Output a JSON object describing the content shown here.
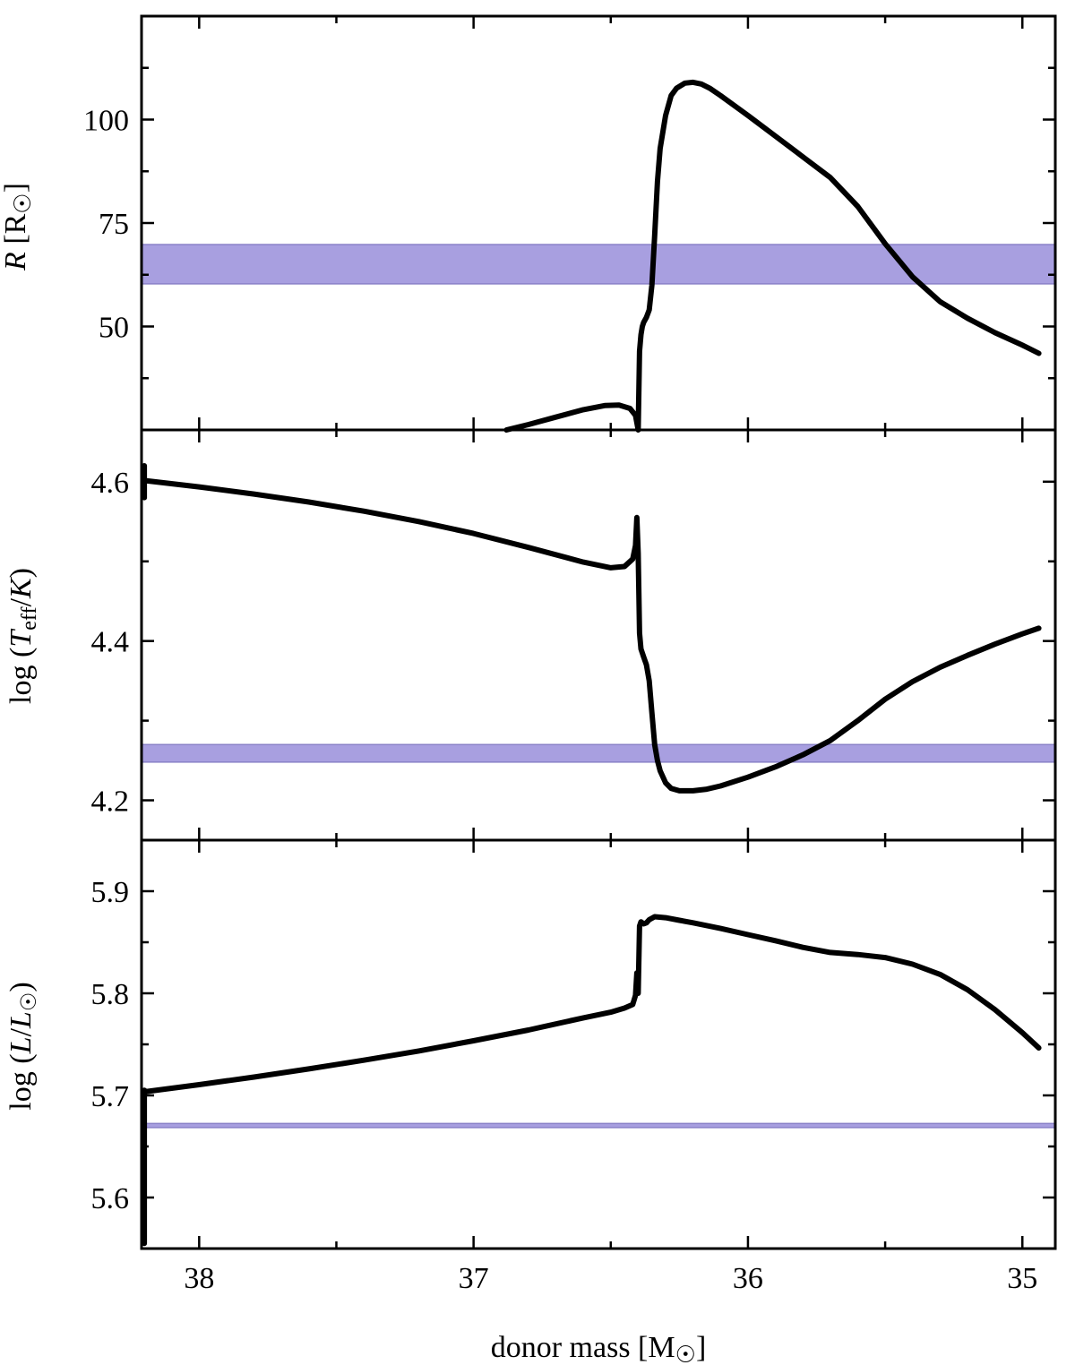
{
  "chart_data": [
    {
      "type": "line",
      "panel": "top",
      "ylabel_parts": [
        "R",
        " [R",
        "☉",
        "]"
      ],
      "xlim": [
        38.21,
        34.88
      ],
      "ylim": [
        25,
        125
      ],
      "yticks": [
        50,
        75,
        100
      ],
      "ytick_labels": [
        "50",
        "75",
        "100"
      ],
      "yminor": [
        25,
        37.5,
        62.5,
        87.5,
        112.5
      ],
      "band": {
        "y0": 60.3,
        "y1": 69.8,
        "color": "#a89fe0"
      },
      "series": [
        {
          "x": [
            36.88,
            36.8,
            36.7,
            36.6,
            36.52,
            36.47,
            36.43,
            36.41,
            36.4,
            36.395,
            36.39,
            36.385,
            36.38,
            36.37,
            36.36,
            36.35,
            36.34,
            36.33,
            36.32,
            36.3,
            36.28,
            36.26,
            36.23,
            36.2,
            36.17,
            36.14,
            36.1,
            36.0,
            35.9,
            35.8,
            35.7,
            35.6,
            35.5,
            35.4,
            35.3,
            35.2,
            35.1,
            35.0,
            34.94
          ],
          "y": [
            25,
            26.3,
            28.1,
            29.9,
            30.9,
            31.0,
            30.2,
            28.5,
            25.0,
            44.0,
            48.0,
            50.0,
            51.0,
            52.2,
            54.0,
            60.0,
            72.0,
            85.0,
            93.0,
            101.0,
            105.8,
            107.6,
            108.8,
            109.0,
            108.6,
            107.6,
            105.8,
            101.0,
            96.0,
            91.0,
            86.0,
            79.0,
            70.0,
            62.0,
            56.0,
            52.0,
            48.5,
            45.5,
            43.5
          ]
        }
      ]
    },
    {
      "type": "line",
      "panel": "middle",
      "ylabel_parts": [
        "log (",
        "T",
        "eff",
        "/",
        "K",
        ")"
      ],
      "xlim": [
        38.21,
        34.88
      ],
      "ylim": [
        4.15,
        4.665
      ],
      "yticks": [
        4.2,
        4.4,
        4.6
      ],
      "ytick_labels": [
        "4.2",
        "4.4",
        "4.6"
      ],
      "yminor": [
        4.3,
        4.5
      ],
      "band": {
        "y0": 4.248,
        "y1": 4.27,
        "color": "#a89fe0"
      },
      "series": [
        {
          "x": [
            38.2,
            38.0,
            37.8,
            37.6,
            37.4,
            37.2,
            37.0,
            36.8,
            36.6,
            36.5,
            36.45,
            36.42,
            36.41,
            36.405,
            36.4,
            36.395,
            36.39,
            36.38,
            36.37,
            36.36,
            36.35,
            36.34,
            36.33,
            36.32,
            36.3,
            36.28,
            36.25,
            36.2,
            36.15,
            36.1,
            36.0,
            35.9,
            35.8,
            35.7,
            35.6,
            35.5,
            35.4,
            35.3,
            35.2,
            35.1,
            35.0,
            34.94
          ],
          "y": [
            4.6015,
            4.5935,
            4.5845,
            4.5745,
            4.563,
            4.55,
            4.535,
            4.5175,
            4.499,
            4.492,
            4.4935,
            4.503,
            4.52,
            4.555,
            4.51,
            4.41,
            4.39,
            4.38,
            4.37,
            4.35,
            4.31,
            4.27,
            4.25,
            4.237,
            4.222,
            4.215,
            4.212,
            4.212,
            4.214,
            4.218,
            4.229,
            4.242,
            4.257,
            4.275,
            4.3,
            4.327,
            4.349,
            4.367,
            4.382,
            4.396,
            4.409,
            4.416
          ]
        },
        {
          "x": [
            38.2,
            38.2
          ],
          "y": [
            4.58,
            4.62
          ]
        }
      ]
    },
    {
      "type": "line",
      "panel": "bottom",
      "ylabel_parts": [
        "log (",
        "L",
        "/",
        "L",
        "☉",
        ")"
      ],
      "xlabel_parts": [
        "donor mass [M",
        "☉",
        "]"
      ],
      "xlim": [
        38.21,
        34.88
      ],
      "ylim": [
        5.55,
        5.95
      ],
      "yticks": [
        5.6,
        5.7,
        5.8,
        5.9
      ],
      "ytick_labels": [
        "5.6",
        "5.7",
        "5.8",
        "5.9"
      ],
      "yminor": [
        5.65,
        5.75,
        5.85
      ],
      "xticks": [
        38,
        37,
        36,
        35
      ],
      "xtick_labels": [
        "38",
        "37",
        "36",
        "35"
      ],
      "xminor": [
        37.5,
        36.5,
        35.5
      ],
      "band": {
        "y0": 5.6685,
        "y1": 5.6725,
        "color": "#a89fe0"
      },
      "series": [
        {
          "x": [
            38.2,
            38.0,
            37.8,
            37.6,
            37.4,
            37.2,
            37.0,
            36.8,
            36.6,
            36.5,
            36.45,
            36.42,
            36.41,
            36.405,
            36.4,
            36.395,
            36.39,
            36.385,
            36.38,
            36.37,
            36.36,
            36.34,
            36.3,
            36.25,
            36.2,
            36.1,
            36.0,
            35.9,
            35.8,
            35.7,
            35.6,
            35.5,
            35.4,
            35.3,
            35.2,
            35.1,
            35.0,
            34.94
          ],
          "y": [
            5.7035,
            5.7105,
            5.718,
            5.726,
            5.7345,
            5.7435,
            5.7535,
            5.764,
            5.776,
            5.7815,
            5.7855,
            5.789,
            5.798,
            5.82,
            5.8,
            5.866,
            5.87,
            5.869,
            5.868,
            5.869,
            5.872,
            5.875,
            5.874,
            5.8715,
            5.869,
            5.8635,
            5.8575,
            5.8515,
            5.845,
            5.84,
            5.838,
            5.835,
            5.8285,
            5.8185,
            5.8035,
            5.784,
            5.7615,
            5.7465
          ]
        },
        {
          "x": [
            38.2,
            38.2
          ],
          "y": [
            5.555,
            5.705
          ]
        }
      ]
    }
  ]
}
